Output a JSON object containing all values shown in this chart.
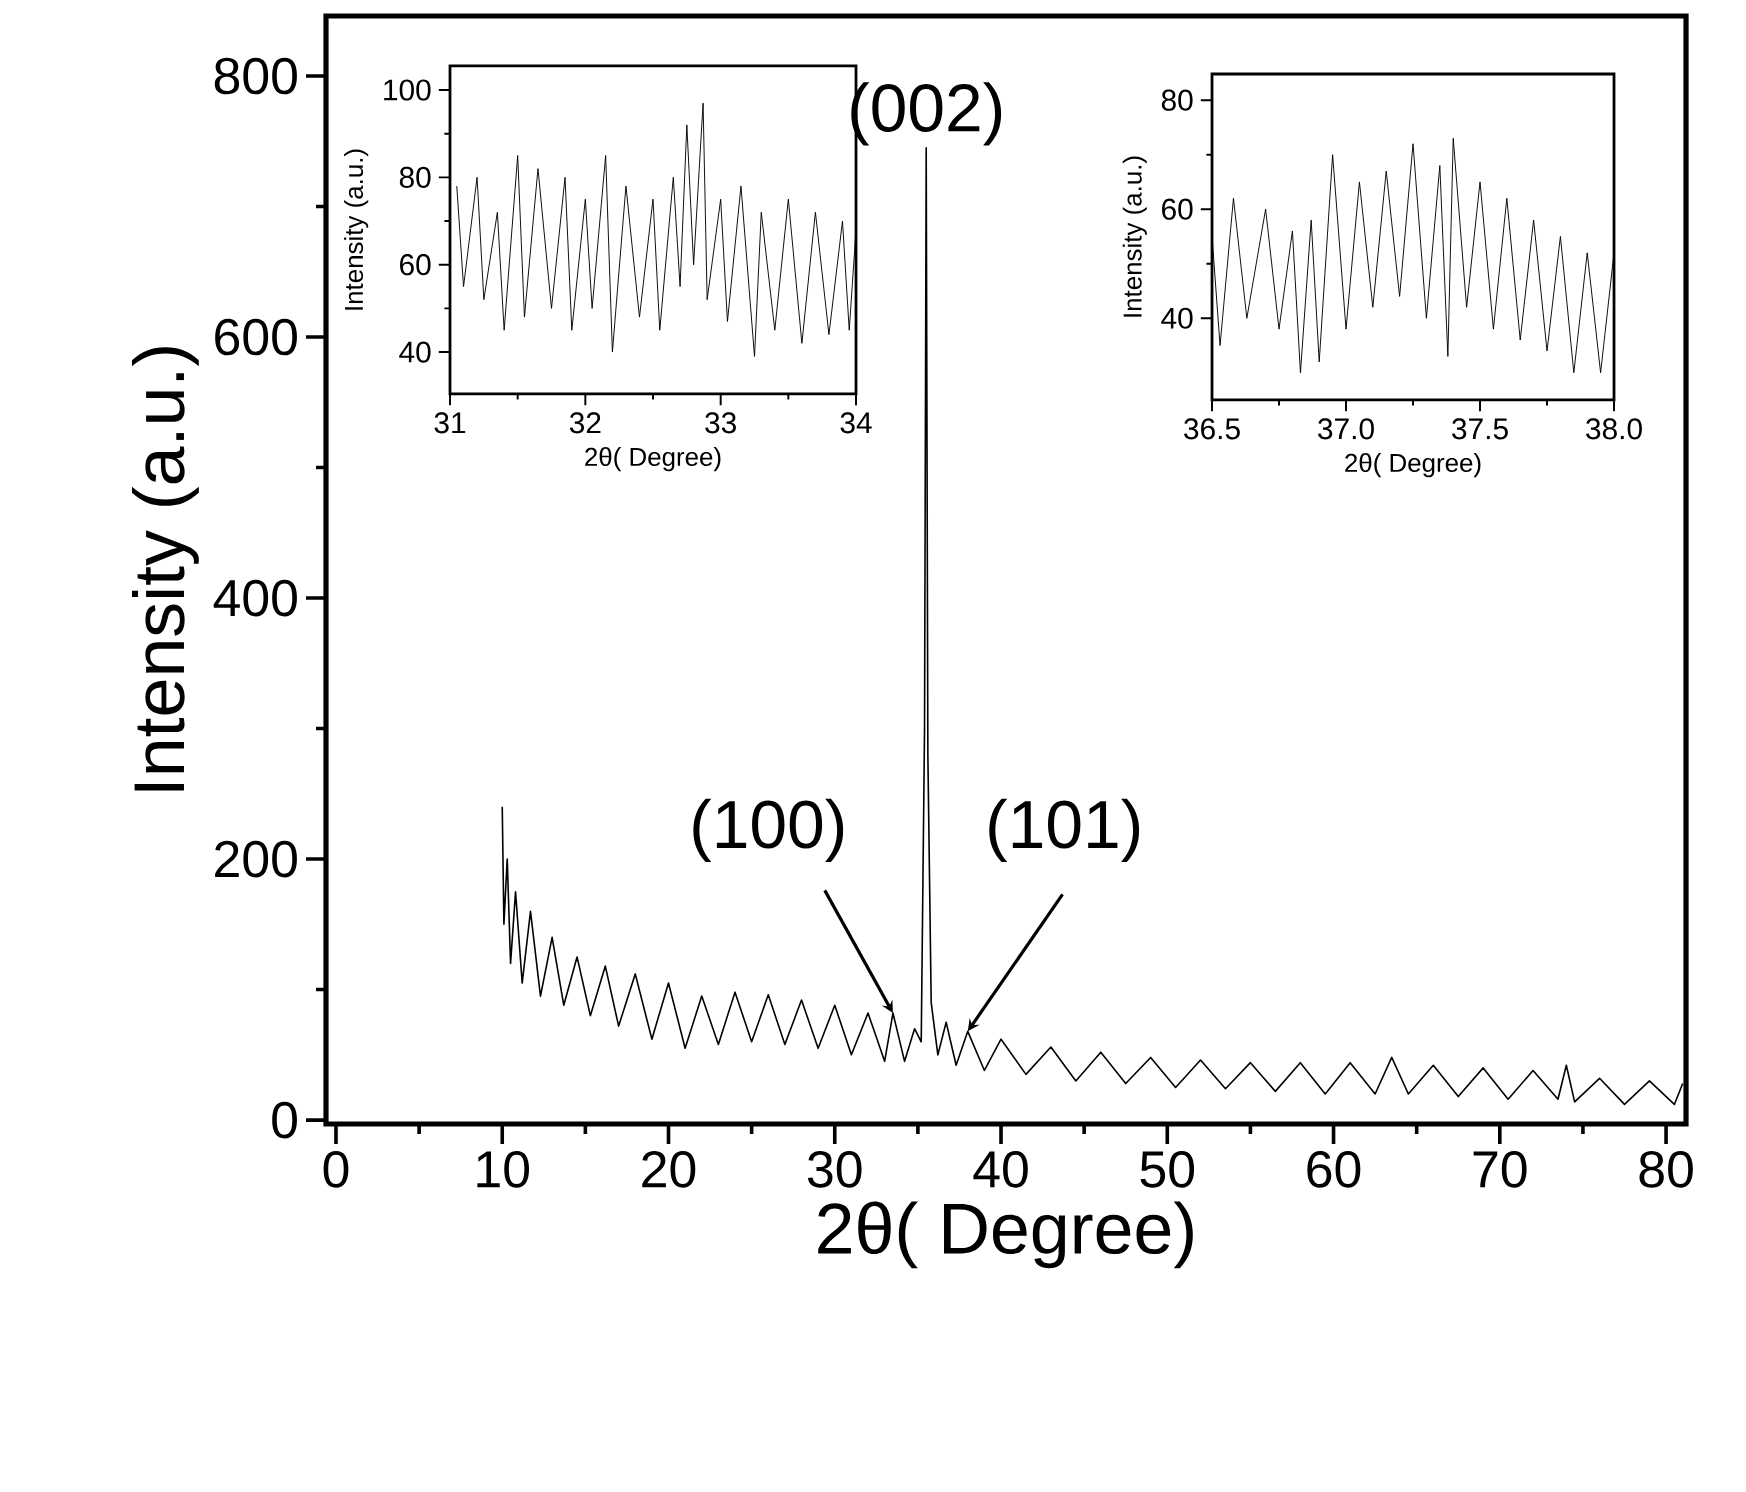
{
  "chart_data": [
    {
      "type": "line",
      "xlabel": "2θ( Degree)",
      "ylabel": "Intensity (a.u.)",
      "xlim": [
        -0.6,
        81.2
      ],
      "ylim": [
        -3,
        846
      ],
      "xticks": [
        0,
        10,
        20,
        30,
        40,
        50,
        60,
        70,
        80
      ],
      "yticks": [
        0,
        200,
        400,
        600,
        800
      ],
      "annotations": [
        {
          "text": "(002)",
          "x": 35.5,
          "y": 745
        },
        {
          "text": "(100)",
          "x": 33.5,
          "y": 82
        },
        {
          "text": "(101)",
          "x": 38.0,
          "y": 68
        }
      ],
      "series": [
        {
          "color": "#000000",
          "x": [
            10.0,
            10.1,
            10.3,
            10.5,
            10.8,
            11.2,
            11.7,
            12.3,
            13.0,
            13.7,
            14.5,
            15.3,
            16.2,
            17.0,
            18.0,
            19.0,
            20.0,
            21.0,
            22.0,
            23.0,
            24.0,
            25.0,
            26.0,
            27.0,
            28.0,
            29.0,
            30.0,
            31.0,
            32.0,
            33.0,
            33.5,
            34.2,
            34.8,
            35.2,
            35.4,
            35.5,
            35.6,
            35.8,
            36.2,
            36.7,
            37.3,
            38.0,
            39.0,
            40.0,
            41.5,
            43.0,
            44.5,
            46.0,
            47.5,
            49.0,
            50.5,
            52.0,
            53.5,
            55.0,
            56.5,
            58.0,
            59.5,
            61.0,
            62.5,
            63.5,
            64.5,
            66.0,
            67.5,
            69.0,
            70.5,
            72.0,
            73.5,
            74.0,
            74.5,
            76.0,
            77.5,
            79.0,
            80.5,
            81.0
          ],
          "values": [
            240,
            150,
            200,
            120,
            175,
            105,
            160,
            95,
            140,
            88,
            125,
            80,
            118,
            72,
            112,
            62,
            105,
            55,
            95,
            58,
            98,
            60,
            96,
            58,
            92,
            55,
            88,
            50,
            82,
            45,
            82,
            45,
            70,
            60,
            300,
            745,
            280,
            90,
            50,
            75,
            42,
            68,
            38,
            62,
            35,
            56,
            30,
            52,
            28,
            48,
            25,
            46,
            24,
            44,
            22,
            44,
            20,
            44,
            20,
            48,
            20,
            42,
            18,
            40,
            16,
            38,
            16,
            42,
            14,
            32,
            12,
            30,
            12,
            28
          ]
        }
      ]
    },
    {
      "type": "line",
      "xlabel": "2θ( Degree)",
      "ylabel": "Intensity (a.u.)",
      "xlim": [
        31,
        34
      ],
      "ylim": [
        30.4,
        105.5
      ],
      "xticks": [
        31,
        32,
        33,
        34
      ],
      "yticks": [
        40,
        60,
        80,
        100
      ],
      "series": [
        {
          "color": "#000000",
          "x": [
            31.05,
            31.1,
            31.2,
            31.25,
            31.35,
            31.4,
            31.5,
            31.55,
            31.65,
            31.75,
            31.85,
            31.9,
            32.0,
            32.05,
            32.15,
            32.2,
            32.3,
            32.4,
            32.5,
            32.55,
            32.65,
            32.7,
            32.75,
            32.8,
            32.87,
            32.9,
            33.0,
            33.05,
            33.15,
            33.25,
            33.3,
            33.4,
            33.5,
            33.6,
            33.7,
            33.8,
            33.9,
            33.95,
            34.0
          ],
          "values": [
            78,
            55,
            80,
            52,
            72,
            45,
            85,
            48,
            82,
            50,
            80,
            45,
            75,
            50,
            85,
            40,
            78,
            48,
            75,
            45,
            80,
            55,
            92,
            60,
            97,
            52,
            75,
            47,
            78,
            39,
            72,
            45,
            75,
            42,
            72,
            44,
            70,
            45,
            68
          ]
        }
      ]
    },
    {
      "type": "line",
      "xlabel": "2θ( Degree)",
      "ylabel": "Intensity (a.u.)",
      "xlim": [
        36.5,
        38.0
      ],
      "ylim": [
        25,
        84.8
      ],
      "xticks": [
        {
          "value": 36.5,
          "label": "36.5"
        },
        {
          "value": 37.0,
          "label": "37.0"
        },
        {
          "value": 37.5,
          "label": "37.5"
        },
        {
          "value": 38.0,
          "label": "38.0"
        }
      ],
      "yticks": [
        40,
        60,
        80
      ],
      "series": [
        {
          "color": "#000000",
          "x": [
            36.5,
            36.53,
            36.58,
            36.63,
            36.7,
            36.75,
            36.8,
            36.83,
            36.87,
            36.9,
            36.95,
            37.0,
            37.05,
            37.1,
            37.15,
            37.2,
            37.25,
            37.3,
            37.35,
            37.38,
            37.4,
            37.45,
            37.5,
            37.55,
            37.6,
            37.65,
            37.7,
            37.75,
            37.8,
            37.85,
            37.9,
            37.95,
            38.0
          ],
          "values": [
            55,
            35,
            62,
            40,
            60,
            38,
            56,
            30,
            58,
            32,
            70,
            38,
            65,
            42,
            67,
            44,
            72,
            40,
            68,
            33,
            73,
            42,
            65,
            38,
            62,
            36,
            58,
            34,
            55,
            30,
            52,
            30,
            52
          ]
        }
      ]
    }
  ]
}
